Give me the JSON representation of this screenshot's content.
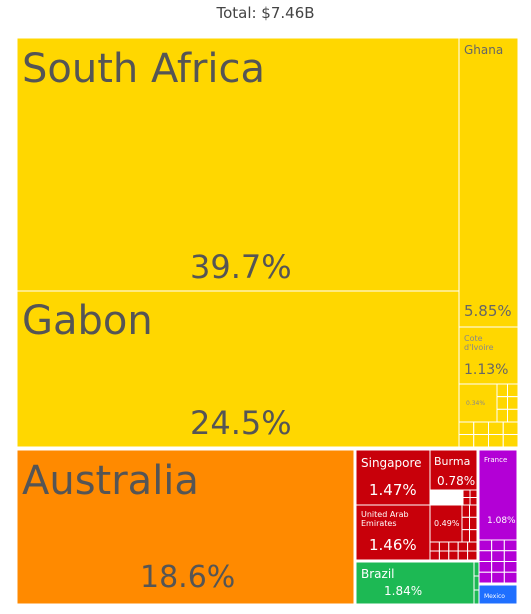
{
  "title": "Total: $7.46B",
  "colors": {
    "africa": "#ffd700",
    "oceania": "#ff8a00",
    "asia": "#c8000a",
    "americas": "#1db954",
    "europe": "#b300d6",
    "border": "#ffffff"
  },
  "chart_data": {
    "type": "treemap",
    "title": "Total: $7.46B",
    "leaves": [
      {
        "name": "South Africa",
        "percent_label": "39.7%",
        "value": 39.7,
        "region": "africa"
      },
      {
        "name": "Gabon",
        "percent_label": "24.5%",
        "value": 24.5,
        "region": "africa"
      },
      {
        "name": "Ghana",
        "percent_label": "5.85%",
        "value": 5.85,
        "region": "africa"
      },
      {
        "name": "Cote d'Ivoire",
        "percent_label": "1.13%",
        "value": 1.13,
        "region": "africa"
      },
      {
        "name": "",
        "percent_label": "0.34%",
        "value": 0.34,
        "region": "africa"
      },
      {
        "name": "Australia",
        "percent_label": "18.6%",
        "value": 18.6,
        "region": "oceania"
      },
      {
        "name": "Singapore",
        "percent_label": "1.47%",
        "value": 1.47,
        "region": "asia"
      },
      {
        "name": "Burma",
        "percent_label": "0.78%",
        "value": 0.78,
        "region": "asia"
      },
      {
        "name": "United Arab Emirates",
        "percent_label": "1.46%",
        "value": 1.46,
        "region": "asia"
      },
      {
        "name": "",
        "percent_label": "0.49%",
        "value": 0.49,
        "region": "asia"
      },
      {
        "name": "Brazil",
        "percent_label": "1.84%",
        "value": 1.84,
        "region": "americas"
      },
      {
        "name": "France",
        "percent_label": "1.08%",
        "value": 1.08,
        "region": "europe"
      },
      {
        "name": "Mexico",
        "percent_label": "",
        "value": 0.3,
        "region": "americas"
      }
    ]
  }
}
